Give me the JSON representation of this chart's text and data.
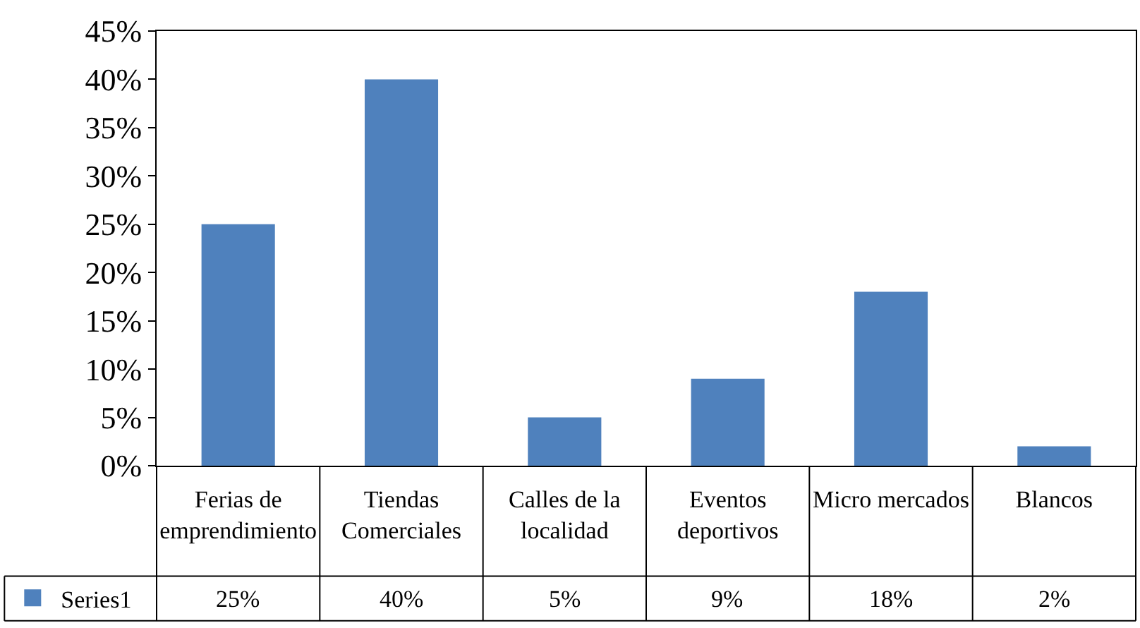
{
  "chart_data": {
    "type": "bar",
    "categories": [
      "Ferias de emprendimiento",
      "Tiendas Comerciales",
      "Calles de la localidad",
      "Eventos deportivos",
      "Micro mercados",
      "Blancos"
    ],
    "series": [
      {
        "name": "Series1",
        "color": "#4f81bd",
        "values": [
          25,
          40,
          5,
          9,
          18,
          2
        ],
        "value_labels": [
          "25%",
          "40%",
          "5%",
          "9%",
          "18%",
          "2%"
        ]
      }
    ],
    "ylim": [
      0,
      45
    ],
    "yticks": [
      {
        "value": 0,
        "label": "0%"
      },
      {
        "value": 5,
        "label": "5%"
      },
      {
        "value": 10,
        "label": "10%"
      },
      {
        "value": 15,
        "label": "15%"
      },
      {
        "value": 20,
        "label": "20%"
      },
      {
        "value": 25,
        "label": "25%"
      },
      {
        "value": 30,
        "label": "30%"
      },
      {
        "value": 35,
        "label": "35%"
      },
      {
        "value": 40,
        "label": "40%"
      },
      {
        "value": 45,
        "label": "45%"
      }
    ],
    "grid": false,
    "legend": "bottom left"
  }
}
